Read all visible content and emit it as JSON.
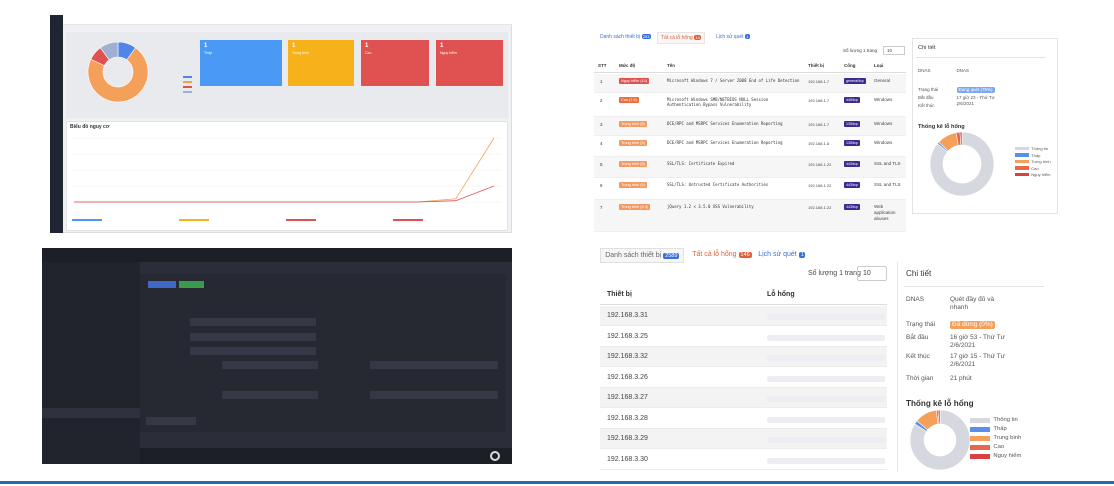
{
  "dashboard": {
    "donut": {
      "values": [
        10,
        72,
        8,
        10
      ],
      "colors": [
        "#4f86e8",
        "#f5a05a",
        "#e05252",
        "#9fb0d0"
      ]
    },
    "cards": [
      {
        "count": "1",
        "label": "Thấp",
        "color": "#4a9af5"
      },
      {
        "count": "1",
        "label": "Trung bình",
        "color": "#f7b21b"
      },
      {
        "count": "1",
        "label": "Cao",
        "color": "#e05252"
      },
      {
        "count": "1",
        "label": "Nguy hiểm",
        "color": "#e05252"
      }
    ],
    "risk_chart": {
      "title": "Biểu đồ nguy cơ",
      "ylim": [
        0,
        1
      ],
      "series": [
        {
          "color": "#f5a05a",
          "values": [
            0,
            0,
            0,
            0,
            0,
            0,
            0,
            0,
            0,
            0,
            0.05,
            1
          ]
        },
        {
          "color": "#e05252",
          "values": [
            0,
            0,
            0,
            0,
            0,
            0,
            0,
            0,
            0,
            0,
            0.02,
            0.25
          ]
        }
      ]
    }
  },
  "vuln_view": {
    "tabs": [
      {
        "label": "Danh sách thiết bị",
        "badge": "253",
        "color": "#3a6fd8"
      },
      {
        "label": "Tất cả lỗ hổng",
        "badge": "14",
        "color": "#e0603a"
      },
      {
        "label": "Lịch sử quét",
        "badge": "1",
        "color": "#3a6fd8"
      }
    ],
    "page_size_label": "Số lượng 1 trang",
    "page_size": "10",
    "columns": [
      "STT",
      "Mức độ",
      "Tên",
      "Thiết bị",
      "Cổng",
      "Loại"
    ],
    "rows": [
      {
        "stt": "1",
        "severity": "Nguy hiểm (10)",
        "severity_color": "#e05252",
        "name": "Microsoft Windows 7 / Server 2008 End of Life Detection",
        "device": "192.168.1.7",
        "port": "general/tcp",
        "type": "General"
      },
      {
        "stt": "2",
        "severity": "Cao (7.5)",
        "severity_color": "#ee6b3b",
        "name": "Microsoft Windows SMB/NETBIOS NULL Session Authentication Bypass Vulnerability",
        "device": "192.168.1.7",
        "port": "445/tcp",
        "type": "Windows"
      },
      {
        "stt": "3",
        "severity": "Trung bình (5)",
        "severity_color": "#f39a62",
        "name": "DCE/RPC and MSRPC Services Enumeration Reporting",
        "device": "192.168.1.7",
        "port": "135/tcp",
        "type": "Windows"
      },
      {
        "stt": "4",
        "severity": "Trung bình (5)",
        "severity_color": "#f39a62",
        "name": "DCE/RPC and MSRPC Services Enumeration Reporting",
        "device": "192.168.1.8",
        "port": "135/tcp",
        "type": "Windows"
      },
      {
        "stt": "5",
        "severity": "Trung bình (5)",
        "severity_color": "#f39a62",
        "name": "SSL/TLS: Certificate Expired",
        "device": "192.168.1.22",
        "port": "443/tcp",
        "type": "SSL and TLS"
      },
      {
        "stt": "6",
        "severity": "Trung bình (5)",
        "severity_color": "#f39a62",
        "name": "SSL/TLS: Untrusted Certificate Authorities",
        "device": "192.168.1.22",
        "port": "443/tcp",
        "type": "SSL and TLS"
      },
      {
        "stt": "7",
        "severity": "Trung bình (4.3)",
        "severity_color": "#f39a62",
        "name": "jQuery 1.2 < 3.5.0 XSS Vulnerability",
        "device": "192.168.1.22",
        "port": "443/tcp",
        "type": "Web application abuses"
      }
    ],
    "detail": {
      "title": "Chi tiết",
      "rows": [
        {
          "label": "DNAS",
          "value": "DNAS"
        },
        {
          "label": "Trạng thái",
          "value": "Đang quét (75%)",
          "badge": "#7ea6f0"
        },
        {
          "label": "Bắt đầu",
          "value": "17 giờ 23 - Thứ Tư 2/6/2021"
        },
        {
          "label": "Kết thúc",
          "value": "-"
        }
      ],
      "stats_title": "Thống kê lỗ hổng",
      "stats": {
        "labels": [
          "Thông tin",
          "Thấp",
          "Trung bình",
          "Cao",
          "Nguy hiểm"
        ],
        "colors": [
          "#d5d8de",
          "#5b8def",
          "#f5a05a",
          "#e8664a",
          "#d94040"
        ],
        "values": [
          86,
          1,
          10,
          2,
          1
        ]
      }
    }
  },
  "device_view": {
    "tabs": [
      {
        "label": "Danh sách thiết bị",
        "badge": "2589",
        "color": "#3a6fd8"
      },
      {
        "label": "Tất cả lỗ hổng",
        "badge": "146",
        "color": "#e0603a"
      },
      {
        "label": "Lịch sử quét",
        "badge": "1",
        "color": "#3a6fd8"
      }
    ],
    "page_size_label": "Số lượng 1 trang",
    "page_size": "10",
    "columns": [
      "Thiết bị",
      "Lỗ hổng"
    ],
    "devices": [
      "192.168.3.31",
      "192.168.3.25",
      "192.168.3.32",
      "192.168.3.26",
      "192.168.3.27",
      "192.168.3.28",
      "192.168.3.29",
      "192.168.3.30"
    ],
    "detail": {
      "title": "Chi tiết",
      "rows": [
        {
          "label": "DNAS",
          "value": "Quét đầy đủ và nhanh"
        },
        {
          "label": "Trạng thái",
          "value": "Đã dừng (0%)",
          "badge": "#f5a05a"
        },
        {
          "label": "Bắt đầu",
          "value": "16 giờ 53 - Thứ Tư 2/6/2021"
        },
        {
          "label": "Kết thúc",
          "value": "17 giờ 15 - Thứ Tư 2/6/2021"
        },
        {
          "label": "Thời gian",
          "value": "21 phút"
        }
      ],
      "stats_title": "Thống kê lỗ hổng",
      "stats": {
        "labels": [
          "Thông tin",
          "Thấp",
          "Trung bình",
          "Cao",
          "Nguy hiểm"
        ],
        "colors": [
          "#d5d8de",
          "#5b8def",
          "#f5a05a",
          "#e8664a",
          "#d94040"
        ],
        "values": [
          84,
          2,
          12,
          1,
          1
        ]
      }
    }
  }
}
